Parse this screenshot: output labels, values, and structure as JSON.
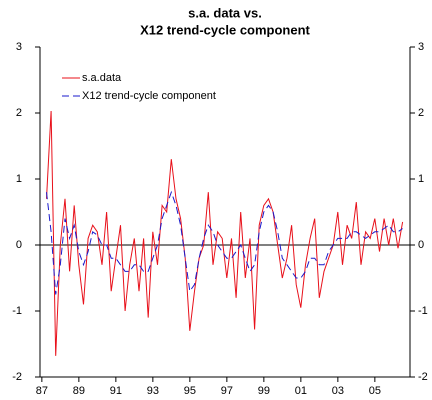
{
  "chart_data": {
    "type": "line",
    "title": [
      "s.a. data vs.",
      "X12 trend-cycle component"
    ],
    "x": [
      1987.25,
      1987.5,
      1987.75,
      1988,
      1988.25,
      1988.5,
      1988.75,
      1989,
      1989.25,
      1989.5,
      1989.75,
      1990,
      1990.25,
      1990.5,
      1990.75,
      1991,
      1991.25,
      1991.5,
      1991.75,
      1992,
      1992.25,
      1992.5,
      1992.75,
      1993,
      1993.25,
      1993.5,
      1993.75,
      1994,
      1994.25,
      1994.5,
      1994.75,
      1995,
      1995.25,
      1995.5,
      1995.75,
      1996,
      1996.25,
      1996.5,
      1996.75,
      1997,
      1997.25,
      1997.5,
      1997.75,
      1998,
      1998.25,
      1998.5,
      1998.75,
      1999,
      1999.25,
      1999.5,
      1999.75,
      2000,
      2000.25,
      2000.5,
      2000.75,
      2001,
      2001.25,
      2001.5,
      2001.75,
      2002,
      2002.25,
      2002.5,
      2002.75,
      2003,
      2003.25,
      2003.5,
      2003.75,
      2004,
      2004.25,
      2004.5,
      2004.75,
      2005,
      2005.25,
      2005.5,
      2005.75,
      2006,
      2006.25,
      2006.5
    ],
    "series": [
      {
        "name": "s.a.data",
        "color": "#e8101a",
        "dash": false,
        "values": [
          0.7,
          2.03,
          -1.68,
          0.0,
          0.7,
          -0.4,
          0.6,
          -0.3,
          -0.9,
          0.1,
          0.3,
          0.2,
          -0.3,
          0.5,
          -0.7,
          -0.2,
          0.3,
          -1.0,
          -0.3,
          0.1,
          -0.7,
          0.1,
          -1.1,
          0.2,
          -0.3,
          0.6,
          0.5,
          1.3,
          0.7,
          0.4,
          -0.2,
          -1.3,
          -0.7,
          -0.2,
          0.0,
          0.8,
          -0.3,
          0.2,
          0.1,
          -0.5,
          0.1,
          -0.8,
          0.5,
          -0.5,
          0.1,
          -1.28,
          0.3,
          0.6,
          0.7,
          0.5,
          0.0,
          -0.5,
          -0.2,
          0.3,
          -0.6,
          -0.95,
          -0.3,
          0.1,
          0.4,
          -0.8,
          -0.4,
          -0.2,
          0.0,
          0.5,
          -0.3,
          0.3,
          0.1,
          0.65,
          -0.3,
          0.2,
          0.1,
          0.4,
          -0.1,
          0.4,
          0.0,
          0.4,
          -0.05,
          0.35
        ]
      },
      {
        "name": "X12 trend-cycle component",
        "color": "#1a1acc",
        "dash": true,
        "values": [
          0.8,
          0.2,
          -0.75,
          -0.3,
          0.4,
          0.1,
          0.3,
          -0.1,
          -0.3,
          -0.1,
          0.2,
          0.15,
          0.0,
          0.0,
          -0.2,
          -0.2,
          -0.3,
          -0.4,
          -0.4,
          -0.3,
          -0.3,
          -0.4,
          -0.4,
          -0.2,
          0.0,
          0.4,
          0.6,
          0.8,
          0.6,
          0.3,
          -0.2,
          -0.7,
          -0.6,
          -0.2,
          0.1,
          0.3,
          0.2,
          0.0,
          -0.1,
          -0.2,
          -0.2,
          -0.1,
          0.0,
          -0.2,
          -0.4,
          -0.3,
          0.2,
          0.5,
          0.6,
          0.5,
          0.2,
          -0.2,
          -0.3,
          -0.4,
          -0.5,
          -0.5,
          -0.4,
          -0.2,
          -0.2,
          -0.3,
          -0.3,
          -0.1,
          0.0,
          0.1,
          0.1,
          0.1,
          0.2,
          0.2,
          0.15,
          0.1,
          0.15,
          0.2,
          0.2,
          0.25,
          0.3,
          0.2,
          0.2,
          0.25
        ]
      }
    ],
    "xlim": [
      1986.9,
      2006.9
    ],
    "xticks": [
      {
        "value": 1987,
        "label": "87"
      },
      {
        "value": 1989,
        "label": "89"
      },
      {
        "value": 1991,
        "label": "91"
      },
      {
        "value": 1993,
        "label": "93"
      },
      {
        "value": 1995,
        "label": "95"
      },
      {
        "value": 1997,
        "label": "97"
      },
      {
        "value": 1999,
        "label": "99"
      },
      {
        "value": 2001,
        "label": "01"
      },
      {
        "value": 2003,
        "label": "03"
      },
      {
        "value": 2005,
        "label": "05"
      }
    ],
    "ylim": [
      -2,
      3
    ],
    "yticks": [
      -2,
      -1,
      0,
      1,
      2,
      3
    ],
    "reference_line": 0,
    "legend": "upper left"
  }
}
